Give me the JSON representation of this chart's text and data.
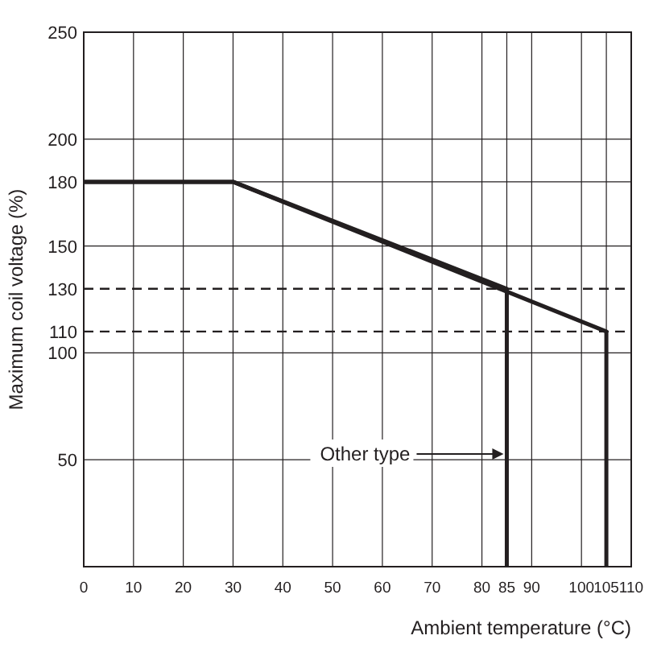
{
  "chart_data": {
    "type": "line",
    "xlabel": "Ambient temperature (°C)",
    "ylabel": "Maximum coil voltage (%)",
    "xlim": [
      0,
      110
    ],
    "xticks": [
      0,
      10,
      20,
      30,
      40,
      50,
      60,
      70,
      80,
      85,
      90,
      100,
      105,
      110
    ],
    "ylim": [
      0,
      250
    ],
    "yticks": [
      50,
      100,
      150,
      180,
      200,
      250
    ],
    "grid": true,
    "legend": "bottom",
    "marker": "none",
    "line_style": "solid",
    "series": [
      {
        "color": "#231f20",
        "x": [
          0,
          30,
          105,
          105
        ],
        "values": [
          180,
          180,
          110,
          0
        ]
      },
      {
        "name": "Other type",
        "color": "#231f20",
        "x": [
          0,
          30,
          85,
          85
        ],
        "values": [
          180,
          180,
          130,
          0
        ]
      }
    ],
    "ref_lines": [
      {
        "axis": "y",
        "value": 130,
        "label": "130",
        "line_style": "dashed"
      },
      {
        "axis": "y",
        "value": 110,
        "label": "110",
        "line_style": "dashed"
      }
    ]
  }
}
